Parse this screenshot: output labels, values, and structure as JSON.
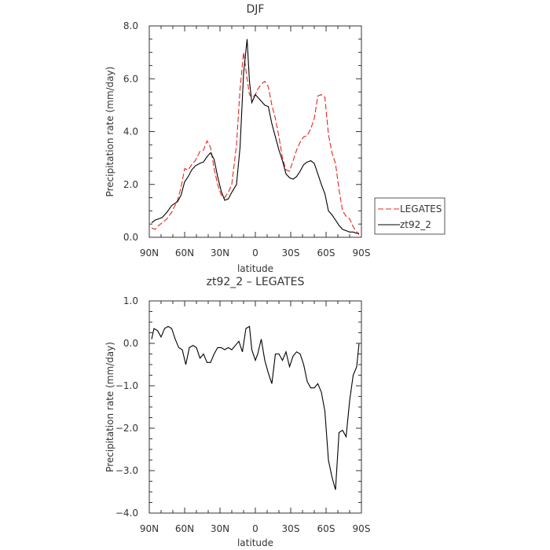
{
  "chart_data": [
    {
      "type": "line",
      "title": "DJF",
      "xlabel": "latitude",
      "ylabel": "Precipitation rate (mm/day)",
      "xlim": [
        -90,
        90
      ],
      "ylim": [
        0,
        8
      ],
      "x_ticks": [
        {
          "value": -90,
          "label": "90N"
        },
        {
          "value": -60,
          "label": "60N"
        },
        {
          "value": -30,
          "label": "30N"
        },
        {
          "value": 0,
          "label": "0"
        },
        {
          "value": 30,
          "label": "30S"
        },
        {
          "value": 60,
          "label": "60S"
        },
        {
          "value": 90,
          "label": "90S"
        }
      ],
      "y_ticks": [
        {
          "value": 0,
          "label": "0.0"
        },
        {
          "value": 2,
          "label": "2.0"
        },
        {
          "value": 4,
          "label": "4.0"
        },
        {
          "value": 6,
          "label": "6.0"
        },
        {
          "value": 8,
          "label": "8.0"
        }
      ],
      "legend": "right",
      "grid": false,
      "series": [
        {
          "name": "LEGATES",
          "color": "#e8261f",
          "dash": "dashed",
          "x": [
            -88,
            -85,
            -82,
            -79,
            -75,
            -71,
            -66,
            -63,
            -60,
            -57,
            -54,
            -51,
            -47,
            -44,
            -41,
            -38,
            -35,
            -32,
            -29,
            -26,
            -23,
            -20,
            -16,
            -13,
            -10,
            -7,
            -5,
            -3,
            -1,
            0,
            2,
            5,
            8,
            11,
            14,
            17,
            20,
            23,
            26,
            29,
            32,
            35,
            38,
            41,
            44,
            47,
            50,
            53,
            56,
            59,
            62,
            65,
            68,
            71,
            74,
            77,
            80,
            83,
            86,
            88
          ],
          "y": [
            0.35,
            0.3,
            0.45,
            0.55,
            0.7,
            0.95,
            1.4,
            1.9,
            2.6,
            2.55,
            2.75,
            2.9,
            3.25,
            3.3,
            3.65,
            3.4,
            2.6,
            2.0,
            1.6,
            1.5,
            1.7,
            2.0,
            3.5,
            5.6,
            7.0,
            6.0,
            5.4,
            5.3,
            5.35,
            5.4,
            5.6,
            5.8,
            5.9,
            5.7,
            5.0,
            4.5,
            3.8,
            3.0,
            2.55,
            2.5,
            2.9,
            3.3,
            3.6,
            3.8,
            3.85,
            4.1,
            4.5,
            5.35,
            5.4,
            5.3,
            3.9,
            3.2,
            2.8,
            1.8,
            1.0,
            0.8,
            0.7,
            0.4,
            0.2,
            0.1
          ]
        },
        {
          "name": "zt92_2",
          "color": "#000000",
          "dash": "solid",
          "x": [
            -88,
            -85,
            -82,
            -79,
            -75,
            -71,
            -66,
            -63,
            -60,
            -57,
            -54,
            -51,
            -47,
            -44,
            -41,
            -38,
            -35,
            -32,
            -29,
            -26,
            -23,
            -20,
            -16,
            -13,
            -10,
            -7,
            -5,
            -3,
            -1,
            0,
            2,
            5,
            8,
            11,
            14,
            17,
            20,
            23,
            26,
            29,
            32,
            35,
            38,
            41,
            44,
            47,
            50,
            53,
            56,
            59,
            62,
            65,
            68,
            71,
            74,
            77,
            80,
            83,
            86,
            88
          ],
          "y": [
            0.55,
            0.65,
            0.7,
            0.75,
            0.95,
            1.2,
            1.35,
            1.6,
            2.1,
            2.3,
            2.55,
            2.7,
            2.8,
            2.85,
            3.05,
            3.2,
            2.95,
            2.3,
            1.75,
            1.4,
            1.45,
            1.7,
            2.0,
            3.4,
            6.2,
            7.5,
            5.9,
            5.1,
            5.3,
            5.4,
            5.3,
            5.15,
            5.0,
            4.95,
            4.3,
            3.8,
            3.3,
            2.9,
            2.4,
            2.25,
            2.2,
            2.3,
            2.5,
            2.75,
            2.85,
            2.9,
            2.8,
            2.4,
            2.0,
            1.65,
            1.0,
            0.85,
            0.65,
            0.45,
            0.3,
            0.25,
            0.2,
            0.2,
            0.15,
            0.15
          ]
        }
      ]
    },
    {
      "type": "line",
      "title": "zt92_2 – LEGATES",
      "xlabel": "latitude",
      "ylabel": "Precipitation rate (mm/day)",
      "xlim": [
        -90,
        90
      ],
      "ylim": [
        -4,
        1
      ],
      "x_ticks": [
        {
          "value": -90,
          "label": "90N"
        },
        {
          "value": -60,
          "label": "60N"
        },
        {
          "value": -30,
          "label": "30N"
        },
        {
          "value": 0,
          "label": "0"
        },
        {
          "value": 30,
          "label": "30S"
        },
        {
          "value": 60,
          "label": "60S"
        },
        {
          "value": 90,
          "label": "90S"
        }
      ],
      "y_ticks": [
        {
          "value": -4,
          "label": "−4.0"
        },
        {
          "value": -3,
          "label": "−3.0"
        },
        {
          "value": -2,
          "label": "−2.0"
        },
        {
          "value": -1,
          "label": "−1.0"
        },
        {
          "value": 0,
          "label": "0.0"
        },
        {
          "value": 1,
          "label": "1.0"
        }
      ],
      "grid": false,
      "series": [
        {
          "color": "#000000",
          "dash": "solid",
          "x": [
            -88,
            -86,
            -83,
            -80,
            -77,
            -74,
            -71,
            -68,
            -65,
            -62,
            -59,
            -56,
            -53,
            -50,
            -47,
            -44,
            -41,
            -38,
            -35,
            -32,
            -29,
            -26,
            -23,
            -20,
            -17,
            -14,
            -11,
            -8,
            -5,
            -3,
            0,
            2,
            5,
            8,
            11,
            14,
            17,
            20,
            23,
            26,
            29,
            32,
            35,
            38,
            41,
            44,
            47,
            50,
            53,
            56,
            59,
            62,
            65,
            68,
            71,
            74,
            77,
            80,
            83,
            86,
            88
          ],
          "y": [
            0.1,
            0.35,
            0.3,
            0.15,
            0.35,
            0.4,
            0.35,
            0.1,
            -0.1,
            -0.15,
            -0.5,
            -0.1,
            -0.05,
            -0.1,
            -0.35,
            -0.25,
            -0.45,
            -0.45,
            -0.25,
            -0.1,
            -0.1,
            -0.15,
            -0.1,
            -0.15,
            -0.05,
            0.05,
            -0.2,
            0.35,
            0.4,
            -0.15,
            -0.4,
            -0.25,
            0.1,
            -0.4,
            -0.7,
            -0.95,
            -0.25,
            -0.25,
            -0.4,
            -0.2,
            -0.55,
            -0.3,
            -0.2,
            -0.25,
            -0.5,
            -0.9,
            -1.05,
            -1.05,
            -0.95,
            -1.15,
            -1.6,
            -2.75,
            -3.15,
            -3.45,
            -2.1,
            -2.05,
            -2.2,
            -1.35,
            -0.75,
            -0.55,
            0.0
          ]
        }
      ]
    }
  ]
}
